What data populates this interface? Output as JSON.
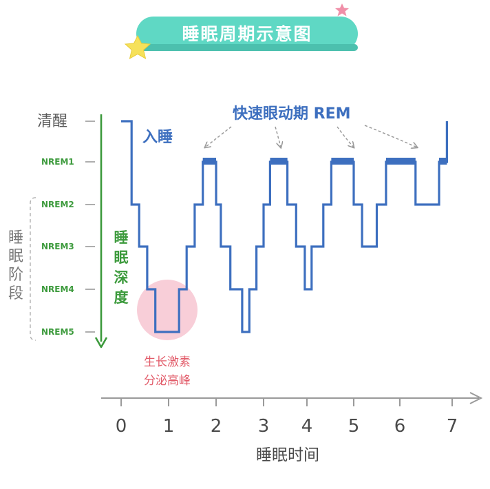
{
  "title": "睡眠周期示意图",
  "chart_data": {
    "type": "line",
    "ylabel": "睡眠阶段",
    "xlabel": "睡眠时间",
    "depth_label": "睡眠深度",
    "y_categories": [
      "清醒",
      "NREM1",
      "NREM2",
      "NREM3",
      "NREM4",
      "NREM5"
    ],
    "x_ticks": [
      "0",
      "1",
      "2",
      "3",
      "4",
      "5",
      "6",
      "7"
    ],
    "xlim": [
      0,
      7.5
    ],
    "series": [
      {
        "points": [
          [
            0,
            0
          ],
          [
            0.22,
            0
          ],
          [
            0.22,
            2
          ],
          [
            0.38,
            2
          ],
          [
            0.38,
            3
          ],
          [
            0.55,
            3
          ],
          [
            0.55,
            4
          ],
          [
            0.72,
            4
          ],
          [
            0.72,
            5
          ],
          [
            1.22,
            5
          ],
          [
            1.22,
            4
          ],
          [
            1.38,
            4
          ],
          [
            1.38,
            3
          ],
          [
            1.55,
            3
          ],
          [
            1.55,
            2
          ],
          [
            1.72,
            2
          ],
          [
            1.72,
            1
          ],
          [
            2.0,
            1
          ],
          [
            2.0,
            2
          ],
          [
            2.1,
            2
          ],
          [
            2.1,
            3
          ],
          [
            2.3,
            3
          ],
          [
            2.3,
            4
          ],
          [
            2.55,
            4
          ],
          [
            2.55,
            5
          ],
          [
            2.7,
            5
          ],
          [
            2.7,
            4
          ],
          [
            2.85,
            4
          ],
          [
            2.85,
            3
          ],
          [
            3.0,
            3
          ],
          [
            3.0,
            2
          ],
          [
            3.15,
            2
          ],
          [
            3.15,
            1
          ],
          [
            3.55,
            1
          ],
          [
            3.55,
            2
          ],
          [
            3.75,
            2
          ],
          [
            3.75,
            3
          ],
          [
            3.95,
            3
          ],
          [
            3.95,
            4
          ],
          [
            4.1,
            4
          ],
          [
            4.1,
            3
          ],
          [
            4.35,
            3
          ],
          [
            4.35,
            2
          ],
          [
            4.52,
            2
          ],
          [
            4.52,
            1
          ],
          [
            5.0,
            1
          ],
          [
            5.0,
            2
          ],
          [
            5.18,
            2
          ],
          [
            5.18,
            3
          ],
          [
            5.5,
            3
          ],
          [
            5.5,
            2
          ],
          [
            5.7,
            2
          ],
          [
            5.7,
            1
          ],
          [
            6.3,
            1
          ],
          [
            6.3,
            2
          ],
          [
            6.75,
            2
          ],
          [
            6.75,
            1
          ],
          [
            6.9,
            1
          ],
          [
            6.9,
            0
          ]
        ]
      }
    ],
    "rem_segments": [
      [
        1.72,
        2.0
      ],
      [
        3.15,
        3.55
      ],
      [
        4.52,
        5.0
      ],
      [
        5.7,
        6.3
      ],
      [
        6.75,
        6.9
      ]
    ]
  },
  "annotations": {
    "sleep_onset": "入睡",
    "rem_label": "快速眼动期 REM",
    "growth_hormone_line1": "生长激素",
    "growth_hormone_line2": "分泌高峰"
  },
  "colors": {
    "line": "#3d6fbf",
    "depth_axis": "#3c9a3c",
    "title_bg": "#5fd8c4",
    "highlight": "#f7c9d4",
    "star_yellow": "#f6e15a",
    "star_pink": "#f08fa8"
  }
}
